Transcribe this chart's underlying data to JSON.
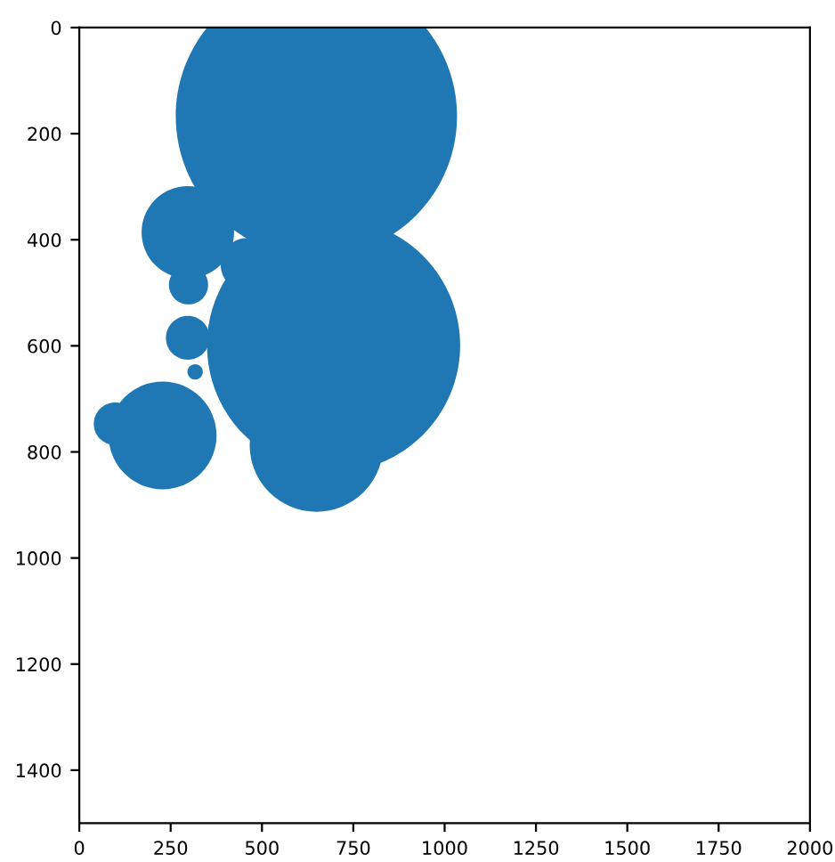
{
  "chart_data": {
    "type": "bubble",
    "relative": false,
    "x": [
      649,
      696,
      649,
      297,
      299,
      297,
      317,
      228,
      98,
      460
    ],
    "values": [
      167,
      599,
      787,
      386,
      485,
      585,
      649,
      769,
      747,
      447
    ],
    "sizes": [
      1,
      0.81,
      0.225,
      0.108,
      0.0194,
      0.0242,
      0.003,
      0.147,
      0.023,
      0.036
    ],
    "color": "#1f77b4",
    "xlim": [
      0,
      2000
    ],
    "xticks": [
      0,
      250,
      500,
      750,
      1000,
      1250,
      1500,
      1750,
      2000
    ],
    "ylim": [
      1500,
      0
    ],
    "yticks": [
      0,
      200,
      400,
      600,
      800,
      1000,
      1200,
      1400
    ],
    "grid": false
  }
}
